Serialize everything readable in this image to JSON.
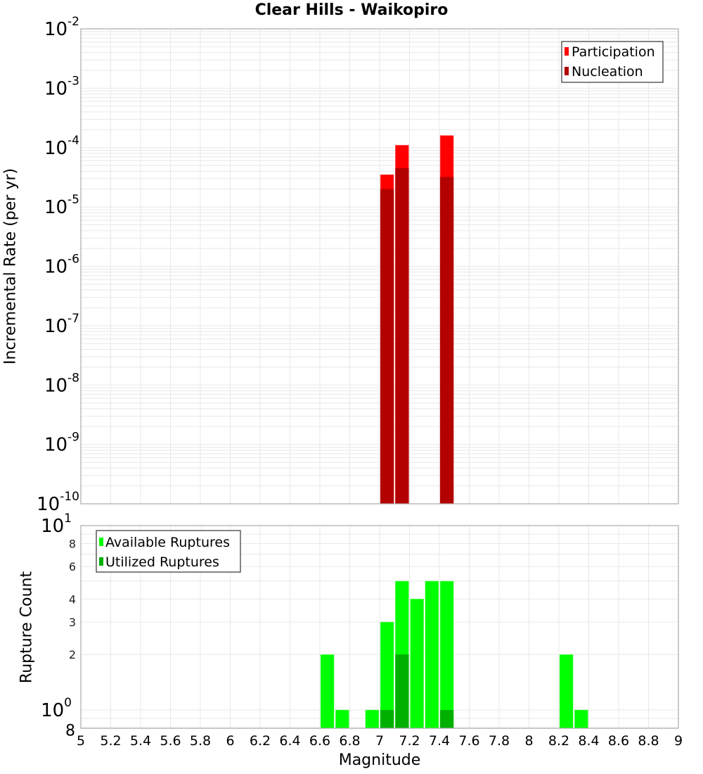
{
  "title": "Clear Hills - Waikopiro",
  "colors": {
    "participation": "#ff0000",
    "nucleation": "#b30000",
    "available": "#00ff00",
    "utilized": "#00b000",
    "grid": "#e8e8e8",
    "axis": "#aaaaaa"
  },
  "top_plot": {
    "ylabel": "Incremental Rate (per yr)",
    "legend": [
      {
        "label": "Participation",
        "color": "#ff0000"
      },
      {
        "label": "Nucleation",
        "color": "#b30000"
      }
    ],
    "yticks": [
      {
        "base": "10",
        "exp": "-2"
      },
      {
        "base": "10",
        "exp": "-3"
      },
      {
        "base": "10",
        "exp": "-4"
      },
      {
        "base": "10",
        "exp": "-5"
      },
      {
        "base": "10",
        "exp": "-6"
      },
      {
        "base": "10",
        "exp": "-7"
      },
      {
        "base": "10",
        "exp": "-8"
      },
      {
        "base": "10",
        "exp": "-9"
      },
      {
        "base": "10",
        "exp": "-10"
      }
    ]
  },
  "bottom_plot": {
    "ylabel": "Rupture Count",
    "xlabel": "Magnitude",
    "legend": [
      {
        "label": "Available Ruptures",
        "color": "#00ff00"
      },
      {
        "label": "Utilized Ruptures",
        "color": "#00b000"
      }
    ],
    "ytick_labels": [
      {
        "value": 10,
        "text": "10",
        "exp": "1",
        "major": true
      },
      {
        "value": 8,
        "text": "8",
        "major": false
      },
      {
        "value": 6,
        "text": "6",
        "major": false
      },
      {
        "value": 4,
        "text": "4",
        "major": false
      },
      {
        "value": 3,
        "text": "3",
        "major": false
      },
      {
        "value": 2,
        "text": "2",
        "major": false
      },
      {
        "value": 1,
        "text": "10",
        "exp": "0",
        "major": true
      },
      {
        "value": 0.8,
        "text": "8",
        "major": false
      }
    ],
    "xticks": [
      "5",
      "5.2",
      "5.4",
      "5.6",
      "5.8",
      "6",
      "6.2",
      "6.4",
      "6.6",
      "6.8",
      "7",
      "7.2",
      "7.4",
      "7.6",
      "7.8",
      "8",
      "8.2",
      "8.4",
      "8.6",
      "8.8",
      "9"
    ]
  },
  "chart_data": [
    {
      "type": "bar",
      "title": "Clear Hills - Waikopiro",
      "xlabel": "Magnitude",
      "ylabel": "Incremental Rate (per yr)",
      "yscale": "log",
      "ylim": [
        1e-10,
        0.01
      ],
      "xlim": [
        5,
        9
      ],
      "grid": true,
      "legend_position": "top-right",
      "x": [
        7.05,
        7.15,
        7.45
      ],
      "series": [
        {
          "name": "Participation",
          "color": "#ff0000",
          "values": [
            3.5e-05,
            0.00011,
            0.00016
          ]
        },
        {
          "name": "Nucleation",
          "color": "#b30000",
          "values": [
            2e-05,
            4.5e-05,
            3.2e-05
          ]
        }
      ]
    },
    {
      "type": "bar",
      "title": "",
      "xlabel": "Magnitude",
      "ylabel": "Rupture Count",
      "yscale": "log",
      "ylim": [
        0.8,
        10
      ],
      "xlim": [
        5,
        9
      ],
      "grid": true,
      "legend_position": "top-left",
      "x": [
        6.65,
        6.75,
        6.95,
        7.05,
        7.15,
        7.25,
        7.35,
        7.45,
        8.25,
        8.35
      ],
      "series": [
        {
          "name": "Available Ruptures",
          "color": "#00ff00",
          "values": [
            2,
            1,
            1,
            3,
            5,
            4,
            5,
            5,
            2,
            1
          ]
        },
        {
          "name": "Utilized Ruptures",
          "color": "#00b000",
          "values": [
            0,
            0,
            0,
            1,
            2,
            0,
            0,
            1,
            0,
            0
          ]
        }
      ]
    }
  ]
}
